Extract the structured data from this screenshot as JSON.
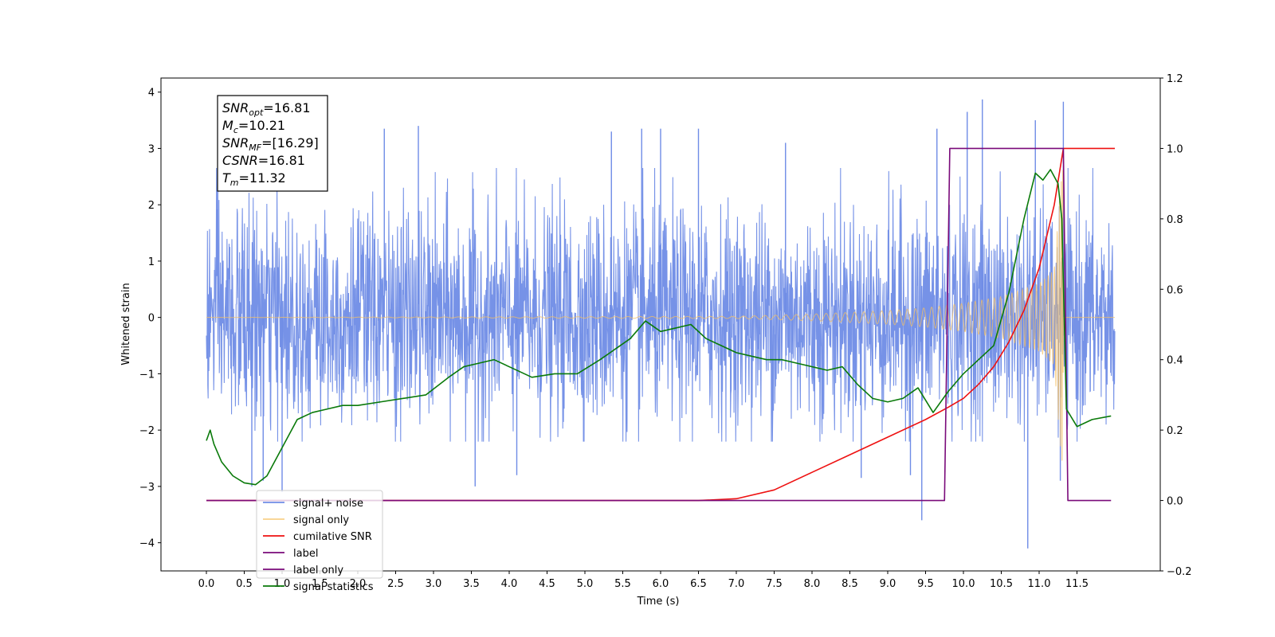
{
  "chart_data": {
    "type": "line",
    "xlabel": "Time (s)",
    "ylabel": "Whitened strain",
    "xlim": [
      -0.6,
      12.6
    ],
    "ylim": [
      -4.5,
      4.25
    ],
    "ylim_right": [
      -0.2,
      1.2
    ],
    "xticks": [
      "0.0",
      "0.5",
      "1.0",
      "1.5",
      "2.0",
      "2.5",
      "3.0",
      "3.5",
      "4.0",
      "4.5",
      "5.0",
      "5.5",
      "6.0",
      "6.5",
      "7.0",
      "7.5",
      "8.0",
      "8.5",
      "9.0",
      "9.5",
      "10.0",
      "10.5",
      "11.0",
      "11.5"
    ],
    "yticks": [
      "−4",
      "−3",
      "−2",
      "−1",
      "0",
      "1",
      "2",
      "3",
      "4"
    ],
    "yticks_right": [
      "−0.2",
      "0.0",
      "0.2",
      "0.4",
      "0.6",
      "0.8",
      "1.0",
      "1.2"
    ],
    "grid": false,
    "legend_position": "lower-left",
    "annotation": {
      "lines": [
        {
          "sym": "SNR",
          "sub": "opt",
          "val": "=16.81"
        },
        {
          "sym": "M",
          "sub": "c",
          "val": "=10.21"
        },
        {
          "sym": "SNR",
          "sub": "MF",
          "val": "=[16.29]"
        },
        {
          "sym": "CSNR",
          "sub": "",
          "val": "=16.81"
        },
        {
          "sym": "T",
          "sub": "m",
          "val": "=11.32"
        }
      ]
    },
    "series": [
      {
        "name": "signal+ noise",
        "color": "#6f8ce6",
        "axis": "left",
        "kind": "noise",
        "x_range": [
          0.0,
          12.0
        ],
        "typical_range": [
          -2.1,
          2.6
        ],
        "extreme_range": [
          -4.1,
          3.87
        ],
        "x": [
          0.15,
          0.6,
          0.75,
          1.0,
          2.35,
          2.8,
          3.55,
          4.1,
          5.35,
          5.75,
          6.0,
          6.5,
          7.65,
          8.65,
          9.3,
          9.45,
          9.65,
          10.05,
          10.25,
          10.85,
          10.95,
          11.28,
          11.32
        ],
        "y": [
          2.4,
          -3.0,
          -2.9,
          -3.1,
          3.35,
          3.4,
          -3.0,
          -2.8,
          3.3,
          3.35,
          3.35,
          3.35,
          3.1,
          -2.85,
          -2.8,
          -3.6,
          3.35,
          3.65,
          3.87,
          -4.1,
          3.5,
          -2.9,
          3.83
        ]
      },
      {
        "name": "signal only",
        "color": "#f5c063",
        "axis": "left",
        "kind": "chirp",
        "x": [
          0.0,
          7.0,
          8.0,
          9.0,
          9.5,
          10.0,
          10.5,
          11.0,
          11.2,
          11.32,
          11.4,
          12.0
        ],
        "y": [
          0.0,
          0.02,
          0.06,
          0.12,
          0.17,
          0.25,
          0.37,
          0.6,
          0.85,
          3.0,
          0.0,
          0.0
        ]
      },
      {
        "name": "cumilative SNR",
        "color": "#ee1111",
        "axis": "right",
        "x": [
          0.0,
          6.5,
          7.0,
          7.5,
          8.0,
          8.5,
          9.0,
          9.5,
          9.8,
          10.0,
          10.2,
          10.4,
          10.6,
          10.8,
          11.0,
          11.2,
          11.32,
          12.0
        ],
        "y": [
          0.0,
          0.0,
          0.005,
          0.03,
          0.08,
          0.13,
          0.18,
          0.23,
          0.265,
          0.29,
          0.33,
          0.38,
          0.45,
          0.54,
          0.66,
          0.84,
          1.0,
          1.0
        ]
      },
      {
        "name": "label",
        "color": "#7a0a7a",
        "axis": "right",
        "x": [
          0.0,
          9.75,
          9.82,
          11.32,
          11.38,
          11.95
        ],
        "y": [
          0.0,
          0.0,
          1.0,
          1.0,
          0.0,
          0.0
        ]
      },
      {
        "name": "label only",
        "color": "#7a0a7a",
        "axis": "right",
        "x": [],
        "y": []
      },
      {
        "name": "signal statistics",
        "color": "#0a7a0a",
        "axis": "right",
        "x": [
          0.0,
          0.05,
          0.1,
          0.2,
          0.35,
          0.5,
          0.65,
          0.8,
          1.0,
          1.2,
          1.4,
          1.6,
          1.8,
          2.0,
          2.3,
          2.6,
          2.9,
          3.2,
          3.4,
          3.6,
          3.8,
          4.0,
          4.3,
          4.6,
          4.9,
          5.2,
          5.4,
          5.6,
          5.8,
          6.0,
          6.2,
          6.4,
          6.6,
          6.8,
          7.0,
          7.2,
          7.4,
          7.6,
          7.8,
          8.0,
          8.2,
          8.4,
          8.6,
          8.8,
          9.0,
          9.2,
          9.4,
          9.6,
          9.8,
          10.0,
          10.2,
          10.4,
          10.6,
          10.8,
          10.95,
          11.05,
          11.15,
          11.25,
          11.3,
          11.36,
          11.5,
          11.7,
          11.95
        ],
        "y": [
          0.17,
          0.2,
          0.16,
          0.11,
          0.07,
          0.05,
          0.045,
          0.07,
          0.15,
          0.23,
          0.25,
          0.26,
          0.27,
          0.27,
          0.28,
          0.29,
          0.3,
          0.35,
          0.38,
          0.39,
          0.4,
          0.38,
          0.35,
          0.36,
          0.36,
          0.4,
          0.43,
          0.46,
          0.51,
          0.48,
          0.49,
          0.5,
          0.46,
          0.44,
          0.42,
          0.41,
          0.4,
          0.4,
          0.39,
          0.38,
          0.37,
          0.38,
          0.33,
          0.29,
          0.28,
          0.29,
          0.32,
          0.25,
          0.31,
          0.36,
          0.4,
          0.44,
          0.59,
          0.8,
          0.93,
          0.91,
          0.94,
          0.9,
          0.8,
          0.26,
          0.21,
          0.23,
          0.24
        ]
      }
    ]
  }
}
